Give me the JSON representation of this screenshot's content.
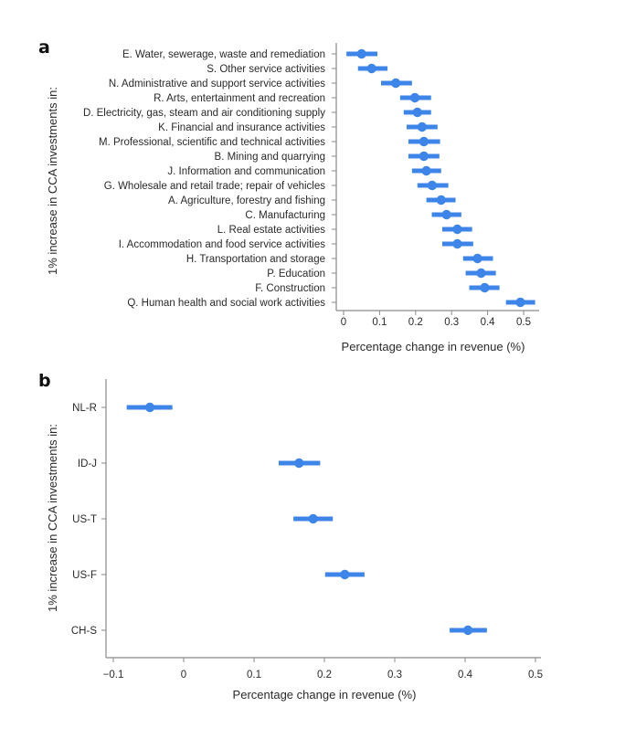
{
  "chart_data": [
    {
      "panel": "a",
      "type": "scatter",
      "subtype": "point-range",
      "ylabel": "1% increase in CCA investments in:",
      "xlabel": "Percentage change in revenue (%)",
      "xlim": [
        0,
        0.5
      ],
      "xticks": [
        "0",
        "0.1",
        "0.2",
        "0.3",
        "0.4",
        "0.5"
      ],
      "xtick_values": [
        0,
        0.1,
        0.2,
        0.3,
        0.4,
        0.5
      ],
      "grid": false,
      "color": "#3d85e8",
      "categories": [
        "E. Water, sewerage, waste and remediation",
        "S. Other service activities",
        "N. Administrative and support service activities",
        "R. Arts, entertainment and recreation",
        "D. Electricity, gas, steam and air conditioning supply",
        "K. Financial and insurance activities",
        "M. Professional, scientific and technical activities",
        "B. Mining and quarrying",
        "J. Information and communication",
        "G. Wholesale and retail trade; repair of vehicles",
        "A. Agriculture, forestry and fishing",
        "C. Manufacturing",
        "L. Real estate activities",
        "I. Accommodation and food service activities",
        "H. Transportation and storage",
        "P. Education",
        "F. Construction",
        "Q. Human health and social work activities"
      ],
      "estimate": [
        0.05,
        0.078,
        0.145,
        0.198,
        0.205,
        0.218,
        0.223,
        0.223,
        0.23,
        0.246,
        0.271,
        0.286,
        0.316,
        0.316,
        0.372,
        0.382,
        0.392,
        0.491
      ],
      "ci_low": [
        0.008,
        0.04,
        0.104,
        0.157,
        0.167,
        0.175,
        0.18,
        0.18,
        0.19,
        0.205,
        0.23,
        0.245,
        0.274,
        0.274,
        0.332,
        0.339,
        0.349,
        0.451
      ],
      "ci_high": [
        0.094,
        0.122,
        0.19,
        0.243,
        0.243,
        0.261,
        0.268,
        0.266,
        0.271,
        0.291,
        0.311,
        0.327,
        0.357,
        0.36,
        0.415,
        0.423,
        0.433,
        0.532
      ]
    },
    {
      "panel": "b",
      "type": "scatter",
      "subtype": "point-range",
      "ylabel": "1% increase in CCA investments in:",
      "xlabel": "Percentage change in revenue (%)",
      "xlim": [
        -0.1,
        0.5
      ],
      "xticks": [
        "-0.1",
        "0",
        "0.1",
        "0.2",
        "0.3",
        "0.4",
        "0.5"
      ],
      "xtick_values": [
        -0.1,
        0,
        0.1,
        0.2,
        0.3,
        0.4,
        0.5
      ],
      "grid": false,
      "color": "#3d85e8",
      "categories": [
        "NL-R",
        "ID-J",
        "US-T",
        "US-F",
        "CH-S"
      ],
      "estimate": [
        -0.048,
        0.164,
        0.184,
        0.229,
        0.404
      ],
      "ci_low": [
        -0.081,
        0.135,
        0.156,
        0.201,
        0.378
      ],
      "ci_high": [
        -0.016,
        0.194,
        0.212,
        0.257,
        0.431
      ]
    }
  ]
}
